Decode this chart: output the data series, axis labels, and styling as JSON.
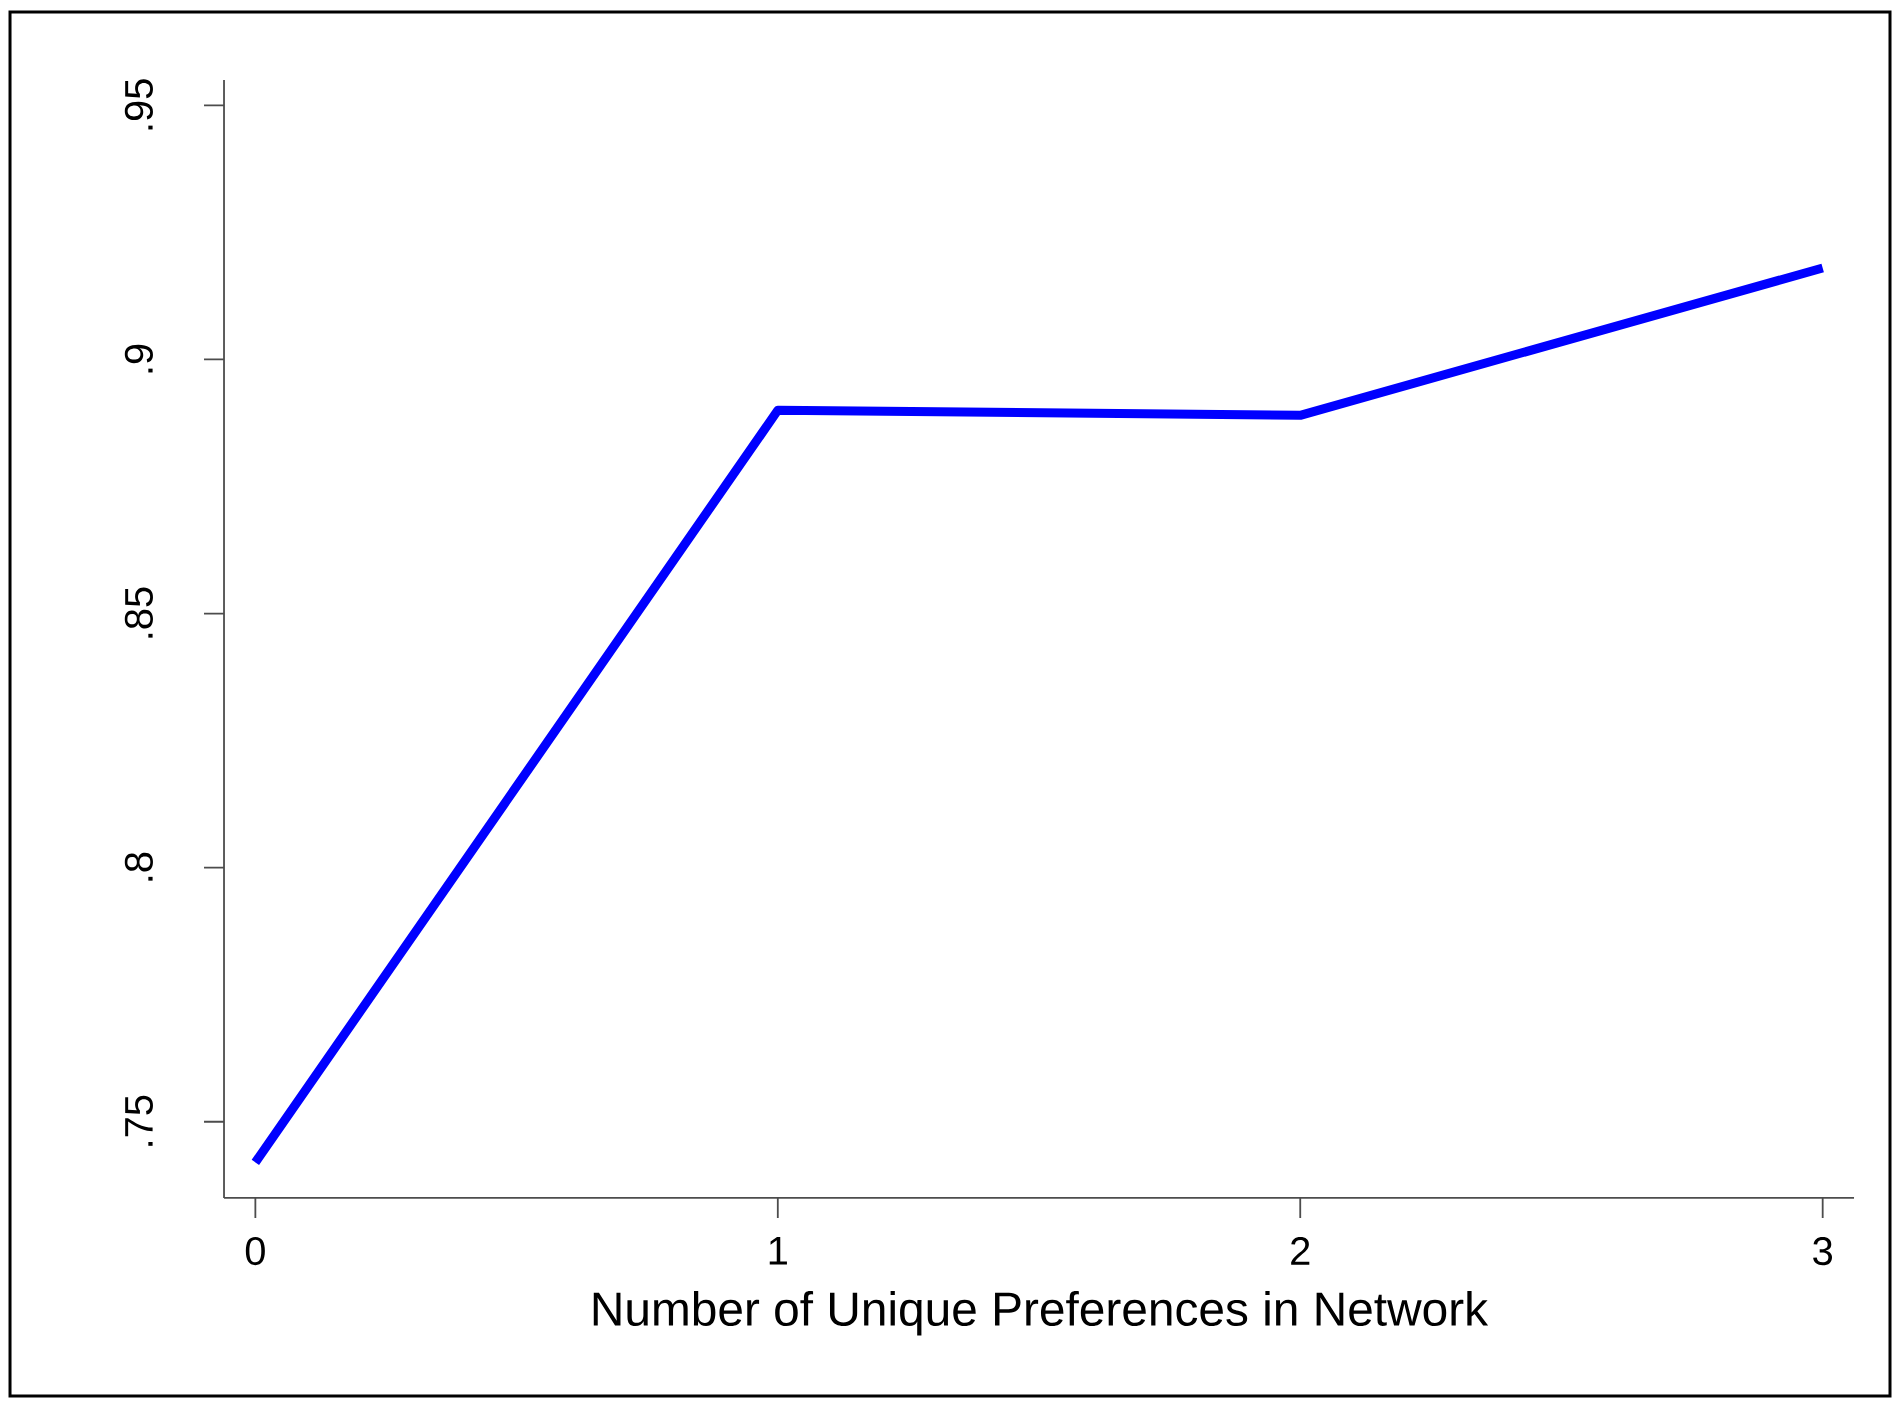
{
  "chart_data": {
    "type": "line",
    "xlabel": "Number of Unique Preferences in Network",
    "x": [
      0,
      1,
      2,
      3
    ],
    "series": [
      {
        "color": "#0000ff",
        "values": [
          0.742,
          0.89,
          0.889,
          0.918
        ]
      }
    ],
    "xlim": [
      -0.06,
      3.06
    ],
    "ylim": [
      0.735,
      0.955
    ],
    "xticks": [
      0,
      1,
      2,
      3
    ],
    "yticks": [
      {
        "value": 0.75,
        "label": ".75"
      },
      {
        "value": 0.8,
        "label": ".8"
      },
      {
        "value": 0.85,
        "label": ".85"
      },
      {
        "value": 0.9,
        "label": ".9"
      },
      {
        "value": 0.95,
        "label": ".95"
      }
    ],
    "marker": "none",
    "line_style": "solid"
  }
}
